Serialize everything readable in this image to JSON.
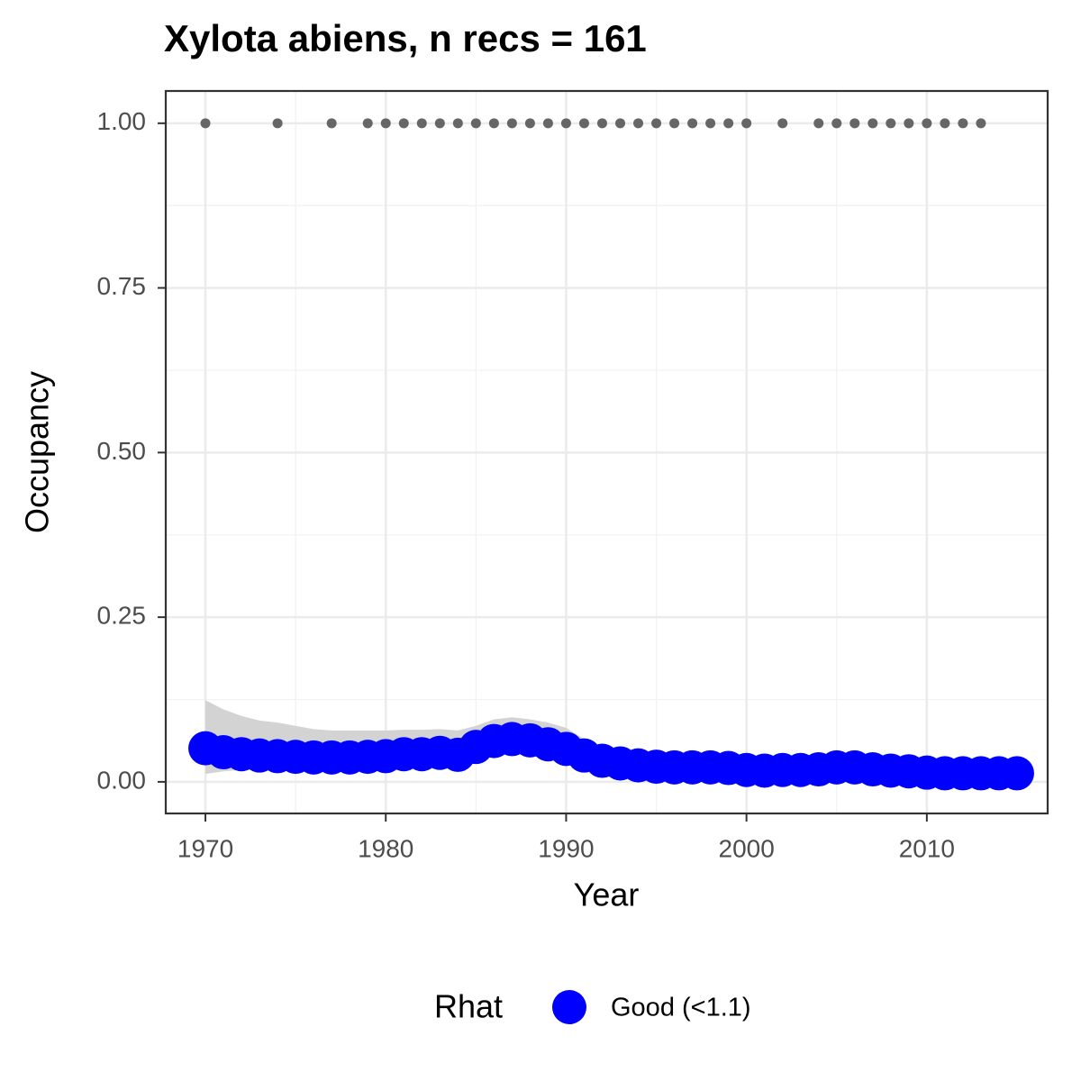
{
  "chart_data": {
    "type": "scatter",
    "title": "Xylota abiens, n recs = 161",
    "x_label": "Year",
    "y_label": "Occupancy",
    "xlim": [
      1967.8,
      2016.7
    ],
    "ylim": [
      -0.048,
      1.049
    ],
    "xticks": [
      1970,
      1980,
      1990,
      2000,
      2010
    ],
    "yticks": [
      {
        "value": 0,
        "label": "0.00"
      },
      {
        "value": 0.25,
        "label": "0.25"
      },
      {
        "value": 0.5,
        "label": "0.50"
      },
      {
        "value": 0.75,
        "label": "0.75"
      },
      {
        "value": 1,
        "label": "1.00"
      }
    ],
    "grid": true,
    "legend": {
      "title": "Rhat",
      "position": "bottom"
    },
    "ribbon_color": "#d3d3d3",
    "series": [
      {
        "name": "Good (<1.1)",
        "color": "#0000ff",
        "x": [
          1970,
          1971,
          1972,
          1973,
          1974,
          1975,
          1976,
          1977,
          1978,
          1979,
          1980,
          1981,
          1982,
          1983,
          1984,
          1985,
          1986,
          1987,
          1988,
          1989,
          1990,
          1991,
          1992,
          1993,
          1994,
          1995,
          1996,
          1997,
          1998,
          1999,
          2000,
          2001,
          2002,
          2003,
          2004,
          2005,
          2006,
          2007,
          2008,
          2009,
          2010,
          2011,
          2012,
          2013,
          2014,
          2015
        ],
        "values": [
          0.051,
          0.045,
          0.042,
          0.04,
          0.039,
          0.038,
          0.037,
          0.037,
          0.037,
          0.038,
          0.039,
          0.042,
          0.042,
          0.044,
          0.041,
          0.053,
          0.062,
          0.065,
          0.063,
          0.057,
          0.05,
          0.04,
          0.032,
          0.028,
          0.025,
          0.023,
          0.022,
          0.022,
          0.022,
          0.021,
          0.018,
          0.017,
          0.018,
          0.018,
          0.019,
          0.022,
          0.022,
          0.019,
          0.017,
          0.016,
          0.014,
          0.013,
          0.013,
          0.013,
          0.013,
          0.013
        ],
        "lower": [
          0.012,
          0.016,
          0.018,
          0.019,
          0.02,
          0.02,
          0.02,
          0.02,
          0.02,
          0.021,
          0.022,
          0.024,
          0.025,
          0.026,
          0.025,
          0.035,
          0.042,
          0.045,
          0.044,
          0.04,
          0.034,
          0.026,
          0.02,
          0.017,
          0.015,
          0.014,
          0.013,
          0.013,
          0.013,
          0.012,
          0.01,
          0.009,
          0.01,
          0.01,
          0.011,
          0.013,
          0.013,
          0.011,
          0.009,
          0.008,
          0.007,
          0.006,
          0.006,
          0.006,
          0.005,
          0.005
        ],
        "upper": [
          0.124,
          0.11,
          0.1,
          0.093,
          0.09,
          0.085,
          0.08,
          0.078,
          0.078,
          0.078,
          0.078,
          0.079,
          0.079,
          0.08,
          0.078,
          0.085,
          0.095,
          0.098,
          0.095,
          0.09,
          0.082,
          0.065,
          0.052,
          0.045,
          0.04,
          0.037,
          0.036,
          0.036,
          0.036,
          0.035,
          0.031,
          0.03,
          0.031,
          0.031,
          0.032,
          0.036,
          0.036,
          0.032,
          0.03,
          0.029,
          0.027,
          0.026,
          0.026,
          0.027,
          0.028,
          0.03
        ]
      },
      {
        "color": "#666666",
        "x": [
          1970,
          1974,
          1977,
          1979,
          1980,
          1981,
          1982,
          1983,
          1984,
          1985,
          1986,
          1987,
          1988,
          1989,
          1990,
          1991,
          1992,
          1993,
          1994,
          1995,
          1996,
          1997,
          1998,
          1999,
          2000,
          2002,
          2004,
          2005,
          2006,
          2007,
          2008,
          2009,
          2010,
          2011,
          2012,
          2013
        ],
        "values": [
          1,
          1,
          1,
          1,
          1,
          1,
          1,
          1,
          1,
          1,
          1,
          1,
          1,
          1,
          1,
          1,
          1,
          1,
          1,
          1,
          1,
          1,
          1,
          1,
          1,
          1,
          1,
          1,
          1,
          1,
          1,
          1,
          1,
          1,
          1,
          1
        ]
      }
    ]
  }
}
